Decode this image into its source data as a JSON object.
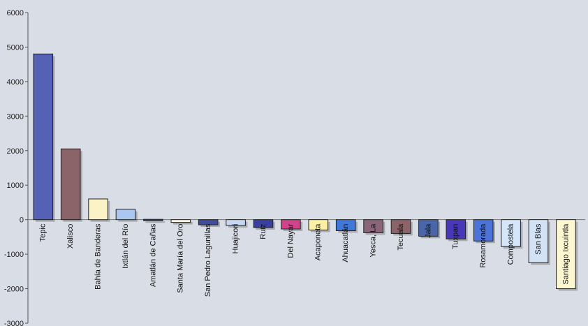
{
  "chart_data": {
    "type": "bar",
    "categories": [
      "Tepic",
      "Xalisco",
      "Bahía de Banderas",
      "Ixtlán del Río",
      "Amatlán de Cañas",
      "Santa María del Oro",
      "San Pedro Lagunillas",
      "Huajicori",
      "Ruiz",
      "Del Nayar",
      "Acaponeta",
      "Ahuacatlán",
      "Yesca, La",
      "Tecuala",
      "Jala",
      "Tuxpan",
      "Rosamorada",
      "Compostela",
      "San Blas",
      "Santiago Ixcuintla"
    ],
    "values": [
      4800,
      2050,
      600,
      300,
      10,
      -80,
      -150,
      -170,
      -230,
      -270,
      -300,
      -320,
      -380,
      -400,
      -480,
      -560,
      -620,
      -780,
      -1250,
      -2000
    ],
    "colors": [
      "#5461b4",
      "#8a6468",
      "#fbf2c6",
      "#aac7f0",
      "#2e3a78",
      "#fdf6d8",
      "#404c9c",
      "#c7d8f3",
      "#3a40a0",
      "#d1438a",
      "#fcefa6",
      "#3f78d8",
      "#8a6478",
      "#8a6468",
      "#4a66a8",
      "#4838b8",
      "#4b73d8",
      "#d6e6fa",
      "#d3e2f5",
      "#fef8d2"
    ],
    "ylim": [
      -3000,
      6000
    ],
    "yticks": [
      6000,
      5000,
      4000,
      3000,
      2000,
      1000,
      0,
      -1000,
      -2000,
      -3000
    ],
    "title": "",
    "xlabel": "",
    "ylabel": "",
    "legend": false,
    "grid": false
  }
}
